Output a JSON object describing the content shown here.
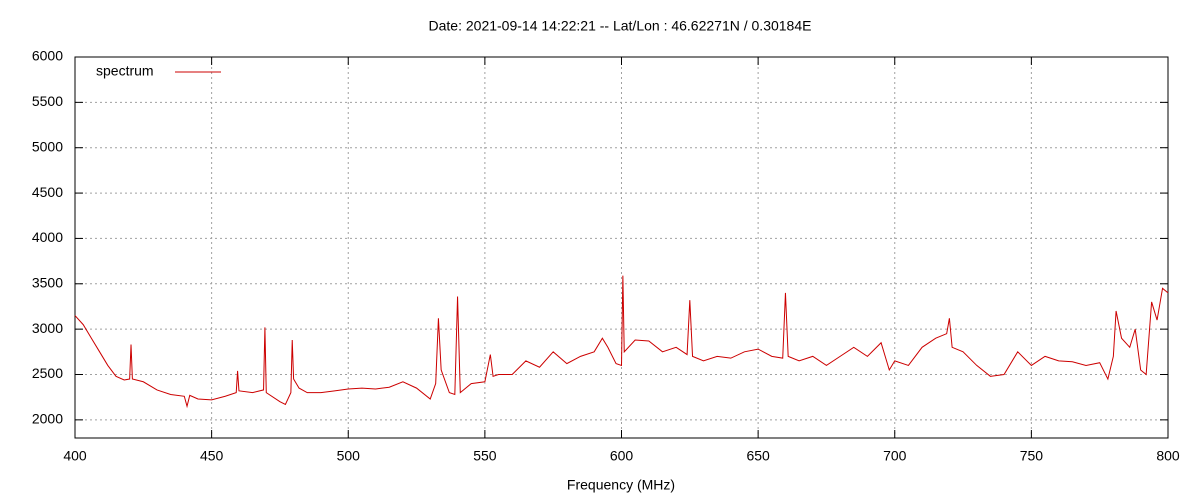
{
  "chart_data": {
    "type": "line",
    "title": "Date: 2021-09-14 14:22:21  --  Lat/Lon : 46.62271N / 0.30184E",
    "x_label": "Frequency (MHz)",
    "legend": "top-left",
    "grid": true,
    "xlim": [
      400,
      800
    ],
    "xticks": [
      400,
      450,
      500,
      550,
      600,
      650,
      700,
      750,
      800
    ],
    "ylim": [
      1800,
      6000
    ],
    "yticks": [
      2000,
      2500,
      3000,
      3500,
      4000,
      4500,
      5000,
      5500,
      6000
    ],
    "x": [
      400,
      403,
      406,
      409,
      412,
      415,
      418,
      420,
      420.5,
      421,
      425,
      430,
      435,
      440,
      441,
      442,
      445,
      450,
      455,
      459,
      459.5,
      460,
      465,
      469,
      469.5,
      470,
      475,
      477,
      479,
      479.5,
      480,
      482,
      485,
      490,
      495,
      500,
      505,
      510,
      515,
      520,
      525,
      530,
      532,
      533,
      534,
      537,
      539,
      540,
      541,
      545,
      550,
      552,
      553,
      555,
      560,
      565,
      570,
      575,
      580,
      585,
      590,
      593,
      595,
      598,
      600,
      600.5,
      601,
      605,
      610,
      615,
      620,
      624,
      625,
      626,
      630,
      635,
      640,
      645,
      650,
      655,
      659,
      660,
      661,
      665,
      670,
      675,
      680,
      685,
      690,
      695,
      698,
      700,
      705,
      710,
      715,
      719,
      720,
      721,
      725,
      730,
      735,
      740,
      745,
      750,
      755,
      760,
      765,
      770,
      775,
      778,
      780,
      781,
      783,
      786,
      788,
      790,
      792,
      794,
      796,
      798,
      800
    ],
    "series": [
      {
        "name": "spectrum",
        "color": "#cc0000",
        "values": [
          3150,
          3050,
          2900,
          2750,
          2600,
          2480,
          2440,
          2450,
          2830,
          2450,
          2420,
          2330,
          2280,
          2260,
          2150,
          2270,
          2230,
          2220,
          2260,
          2300,
          2540,
          2320,
          2300,
          2330,
          3020,
          2300,
          2200,
          2170,
          2300,
          2880,
          2450,
          2350,
          2300,
          2300,
          2320,
          2340,
          2350,
          2340,
          2360,
          2420,
          2350,
          2230,
          2400,
          3120,
          2550,
          2300,
          2280,
          3360,
          2300,
          2400,
          2420,
          2720,
          2480,
          2500,
          2500,
          2650,
          2580,
          2750,
          2620,
          2700,
          2750,
          2900,
          2800,
          2620,
          2600,
          3590,
          2750,
          2880,
          2870,
          2750,
          2800,
          2720,
          3320,
          2700,
          2650,
          2700,
          2680,
          2750,
          2780,
          2700,
          2680,
          3400,
          2700,
          2650,
          2700,
          2600,
          2700,
          2800,
          2700,
          2850,
          2550,
          2650,
          2600,
          2800,
          2900,
          2950,
          3120,
          2800,
          2750,
          2600,
          2480,
          2500,
          2750,
          2600,
          2700,
          2650,
          2640,
          2600,
          2630,
          2450,
          2700,
          3200,
          2900,
          2800,
          3000,
          2550,
          2500,
          3300,
          3100,
          3450,
          3400
        ]
      }
    ]
  }
}
